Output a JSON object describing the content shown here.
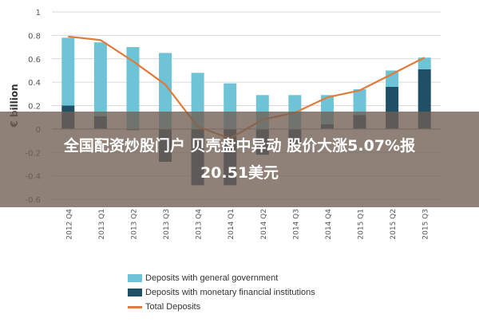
{
  "banner": {
    "title_line1": "全国配资炒股门户 贝壳盘中异动 股价大涨5.07%报",
    "title_line2": "20.51美元"
  },
  "chart_data": {
    "type": "bar",
    "ylabel": "€ billion",
    "ylim": [
      -0.6,
      1
    ],
    "yticks": [
      1,
      0.8,
      0.6,
      0.4,
      0.2,
      0,
      -0.2,
      -0.4,
      -0.6
    ],
    "categories": [
      "2012 Q4",
      "2013 Q1",
      "2013 Q2",
      "2013 Q3",
      "2013 Q4",
      "2014 Q1",
      "2014 Q2",
      "2014 Q3",
      "2014 Q4",
      "2015 Q1",
      "2015 Q2",
      "2015 Q3"
    ],
    "series": [
      {
        "name": "Deposits with general government",
        "kind": "bar",
        "color": "#6fc3d6",
        "values": [
          0.58,
          0.63,
          0.7,
          0.65,
          0.48,
          0.39,
          0.29,
          0.29,
          0.25,
          0.22,
          0.14,
          0.1
        ]
      },
      {
        "name": "Deposits with monetary financial institutions",
        "kind": "bar",
        "color": "#1f5068",
        "values": [
          0.2,
          0.11,
          -0.01,
          -0.28,
          -0.48,
          -0.48,
          -0.22,
          -0.14,
          0.04,
          0.12,
          0.36,
          0.51
        ]
      },
      {
        "name": "Total Deposits",
        "kind": "line",
        "color": "#e07b3c",
        "values": [
          0.79,
          0.76,
          0.58,
          0.38,
          0.02,
          -0.08,
          0.08,
          0.14,
          0.27,
          0.33,
          0.47,
          0.61
        ]
      }
    ],
    "legend": {
      "placement": "bottom",
      "items": [
        {
          "label": "Deposits with general government",
          "color": "#6fc3d6",
          "style": "swatch"
        },
        {
          "label": "Deposits with monetary financial institutions",
          "color": "#1f5068",
          "style": "swatch"
        },
        {
          "label": "Total Deposits",
          "color": "#e07b3c",
          "style": "line"
        }
      ]
    },
    "grid": true
  }
}
